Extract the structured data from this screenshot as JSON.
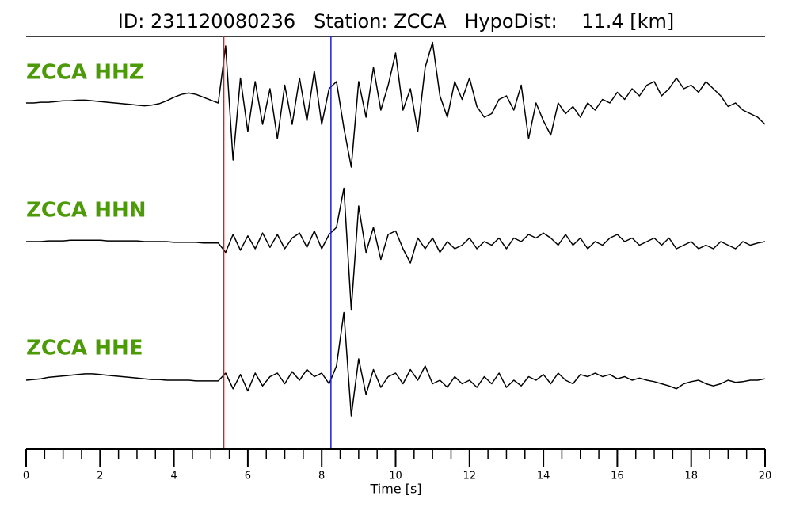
{
  "chart_data": {
    "type": "line",
    "title": "ID: 231120080236   Station: ZCCA   HypoDist:    11.4 [km]",
    "xlabel": "Time [s]",
    "xlim": [
      0,
      20
    ],
    "xticks": [
      0,
      2,
      4,
      6,
      8,
      10,
      12,
      14,
      16,
      18,
      20
    ],
    "minor_xticks": [
      0.5,
      1,
      1.5,
      2.5,
      3,
      3.5,
      4.5,
      5,
      5.5,
      6.5,
      7,
      7.5,
      8.5,
      9,
      9.5,
      10.5,
      11,
      11.5,
      12.5,
      13,
      13.5,
      14.5,
      15,
      15.5,
      16.5,
      17,
      17.5,
      18.5,
      19,
      19.5
    ],
    "label_color": "#4b9a06",
    "vlines": [
      {
        "x": 5.35,
        "color": "#e8191c"
      },
      {
        "x": 8.25,
        "color": "#1f1fd0"
      }
    ],
    "x": [
      0,
      0.2,
      0.4,
      0.6,
      0.8,
      1,
      1.2,
      1.4,
      1.6,
      1.8,
      2,
      2.2,
      2.4,
      2.6,
      2.8,
      3,
      3.2,
      3.4,
      3.6,
      3.8,
      4,
      4.2,
      4.4,
      4.6,
      4.8,
      5,
      5.2,
      5.4,
      5.6,
      5.8,
      6,
      6.2,
      6.4,
      6.6,
      6.8,
      7,
      7.2,
      7.4,
      7.6,
      7.8,
      8,
      8.2,
      8.4,
      8.6,
      8.8,
      9,
      9.2,
      9.4,
      9.6,
      9.8,
      10,
      10.2,
      10.4,
      10.6,
      10.8,
      11,
      11.2,
      11.4,
      11.6,
      11.8,
      12,
      12.2,
      12.4,
      12.6,
      12.8,
      13,
      13.2,
      13.4,
      13.6,
      13.8,
      14,
      14.2,
      14.4,
      14.6,
      14.8,
      15,
      15.2,
      15.4,
      15.6,
      15.8,
      16,
      16.2,
      16.4,
      16.6,
      16.8,
      17,
      17.2,
      17.4,
      17.6,
      17.8,
      18,
      18.2,
      18.4,
      18.6,
      18.8,
      19,
      19.2,
      19.4,
      19.6,
      19.8,
      20
    ],
    "series": [
      {
        "name": "ZCCA HHZ",
        "color": "#000000",
        "values": [
          0,
          0,
          0.01,
          0.01,
          0.02,
          0.03,
          0.03,
          0.04,
          0.04,
          0.03,
          0.02,
          0.01,
          0,
          -0.01,
          -0.02,
          -0.03,
          -0.04,
          -0.03,
          -0.01,
          0.03,
          0.08,
          0.12,
          0.14,
          0.12,
          0.08,
          0.04,
          0,
          0.8,
          -0.8,
          0.35,
          -0.4,
          0.3,
          -0.3,
          0.2,
          -0.5,
          0.25,
          -0.3,
          0.35,
          -0.25,
          0.45,
          -0.3,
          0.2,
          0.3,
          -0.35,
          -0.9,
          0.3,
          -0.2,
          0.5,
          -0.1,
          0.25,
          0.7,
          -0.1,
          0.2,
          -0.4,
          0.5,
          0.85,
          0.1,
          -0.2,
          0.3,
          0.05,
          0.35,
          -0.05,
          -0.2,
          -0.15,
          0.05,
          0.1,
          -0.1,
          0.25,
          -0.5,
          0,
          -0.25,
          -0.45,
          0,
          -0.15,
          -0.05,
          -0.2,
          0,
          -0.1,
          0.05,
          0,
          0.15,
          0.05,
          0.2,
          0.1,
          0.25,
          0.3,
          0.1,
          0.2,
          0.35,
          0.2,
          0.25,
          0.15,
          0.3,
          0.2,
          0.1,
          -0.05,
          0,
          -0.1,
          -0.15,
          -0.2,
          -0.3
        ]
      },
      {
        "name": "ZCCA HHN",
        "color": "#000000",
        "values": [
          0,
          0,
          0,
          0.01,
          0.01,
          0.01,
          0.02,
          0.02,
          0.02,
          0.02,
          0.02,
          0.01,
          0.01,
          0.01,
          0.01,
          0.01,
          0,
          0,
          0,
          0,
          -0.01,
          -0.01,
          -0.01,
          -0.01,
          -0.02,
          -0.02,
          -0.02,
          -0.15,
          0.1,
          -0.12,
          0.08,
          -0.1,
          0.12,
          -0.08,
          0.1,
          -0.1,
          0.05,
          0.12,
          -0.08,
          0.15,
          -0.1,
          0.1,
          0.2,
          0.75,
          -0.95,
          0.5,
          -0.15,
          0.2,
          -0.25,
          0.1,
          0.15,
          -0.1,
          -0.3,
          0.05,
          -0.1,
          0.05,
          -0.15,
          0,
          -0.1,
          -0.05,
          0.05,
          -0.1,
          0,
          -0.05,
          0.05,
          -0.1,
          0.05,
          0,
          0.1,
          0.05,
          0.12,
          0.05,
          -0.05,
          0.1,
          -0.05,
          0.05,
          -0.1,
          0,
          -0.05,
          0.05,
          0.1,
          0,
          0.05,
          -0.05,
          0,
          0.05,
          -0.05,
          0.05,
          -0.1,
          -0.05,
          0,
          -0.1,
          -0.05,
          -0.1,
          0,
          -0.05,
          -0.1,
          0,
          -0.05,
          -0.02,
          0
        ]
      },
      {
        "name": "ZCCA HHE",
        "color": "#000000",
        "values": [
          0,
          0.01,
          0.02,
          0.04,
          0.05,
          0.06,
          0.07,
          0.08,
          0.09,
          0.09,
          0.08,
          0.07,
          0.06,
          0.05,
          0.04,
          0.03,
          0.02,
          0.01,
          0.01,
          0,
          0,
          0,
          0,
          -0.01,
          -0.01,
          -0.01,
          -0.01,
          0.1,
          -0.12,
          0.08,
          -0.15,
          0.1,
          -0.08,
          0.05,
          0.1,
          -0.05,
          0.12,
          0,
          0.15,
          0.05,
          0.1,
          -0.05,
          0.2,
          0.95,
          -0.5,
          0.3,
          -0.2,
          0.15,
          -0.1,
          0.05,
          0.1,
          -0.05,
          0.15,
          0,
          0.2,
          -0.05,
          0,
          -0.1,
          0.05,
          -0.05,
          0,
          -0.1,
          0.05,
          -0.05,
          0.1,
          -0.1,
          0,
          -0.08,
          0.05,
          0,
          0.08,
          -0.05,
          0.1,
          0,
          -0.05,
          0.08,
          0.05,
          0.1,
          0.05,
          0.08,
          0.02,
          0.05,
          0,
          0.03,
          0,
          -0.02,
          -0.05,
          -0.08,
          -0.12,
          -0.05,
          -0.02,
          0,
          -0.05,
          -0.08,
          -0.05,
          0,
          -0.03,
          -0.02,
          0,
          0,
          0.02
        ]
      }
    ]
  }
}
